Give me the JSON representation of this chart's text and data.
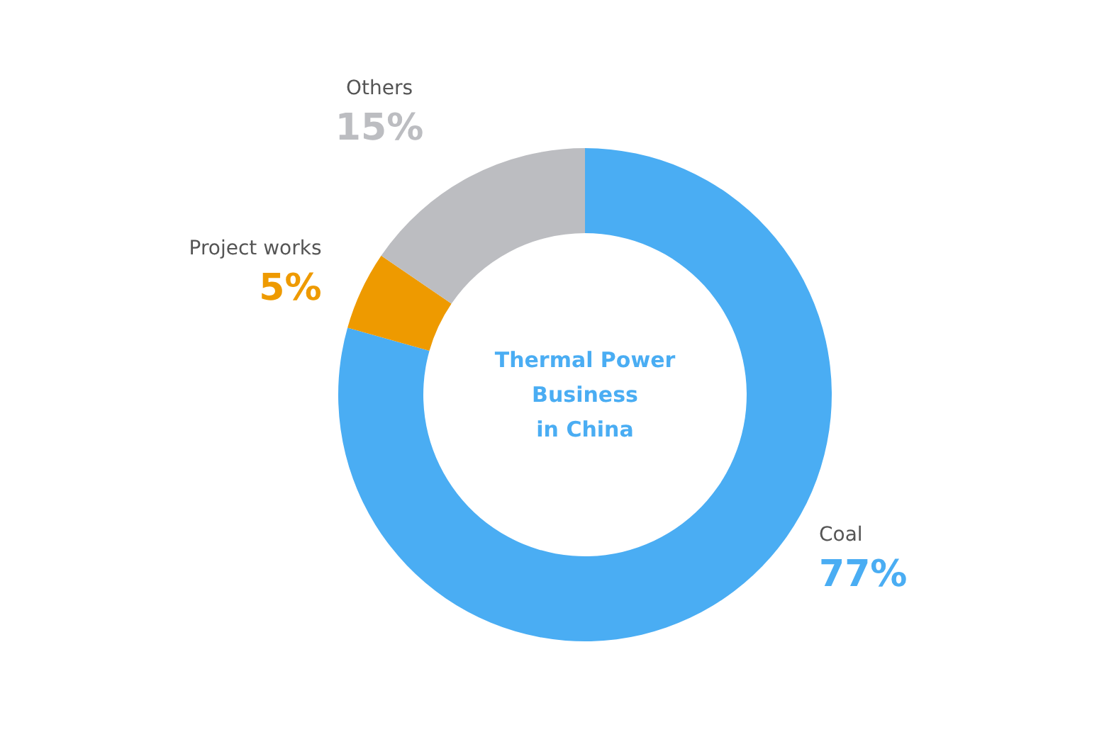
{
  "chart_data": {
    "type": "donut",
    "title": "Thermal Power\nBusiness\nin China",
    "categories": [
      "Coal",
      "Project works",
      "Others"
    ],
    "values": [
      77,
      5,
      15
    ],
    "value_labels": [
      "77%",
      "5%",
      "15%"
    ],
    "colors": [
      "#4aadf3",
      "#ee9a00",
      "#bcbdc1"
    ],
    "legend": false
  }
}
